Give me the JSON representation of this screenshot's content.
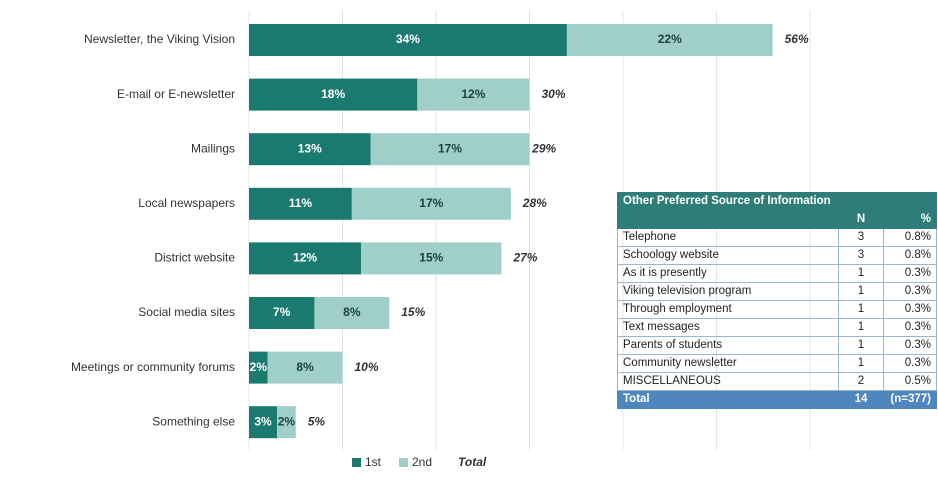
{
  "chart_data": {
    "type": "bar",
    "orientation": "horizontal",
    "stacked": true,
    "categories": [
      "Newsletter, the Viking Vision",
      "E-mail or E-newsletter",
      "Mailings",
      "Local newspapers",
      "District website",
      "Social media sites",
      "Meetings or community forums",
      "Something else"
    ],
    "series": [
      {
        "name": "1st",
        "color": "#1b7a70",
        "values": [
          34,
          18,
          13,
          11,
          12,
          7,
          2,
          3
        ],
        "value_labels": [
          "34%",
          "18%",
          "13%",
          "11%",
          "12%",
          "7%",
          "2%",
          "3%"
        ]
      },
      {
        "name": "2nd",
        "color": "#9fcfc8",
        "values": [
          22,
          12,
          17,
          17,
          15,
          8,
          8,
          2
        ],
        "value_labels": [
          "22%",
          "12%",
          "17%",
          "17%",
          "15%",
          "8%",
          "8%",
          "2%"
        ]
      }
    ],
    "totals": {
      "name": "Total",
      "values": [
        56,
        30,
        29,
        28,
        27,
        15,
        10,
        5
      ],
      "value_labels": [
        "56%",
        "30%",
        "29%",
        "28%",
        "27%",
        "15%",
        "10%",
        "5%"
      ]
    },
    "xlim": [
      0,
      60
    ],
    "xticks": [
      0,
      10,
      20,
      30,
      40,
      50,
      60
    ],
    "grid": true,
    "legend": "bottom"
  },
  "table": {
    "title": "Other Preferred Source of Information",
    "columns": [
      "N",
      "%"
    ],
    "rows": [
      [
        "Telephone",
        "3",
        "0.8%"
      ],
      [
        "Schoology website",
        "3",
        "0.8%"
      ],
      [
        "As it is presently",
        "1",
        "0.3%"
      ],
      [
        "Viking television program",
        "1",
        "0.3%"
      ],
      [
        "Through employment",
        "1",
        "0.3%"
      ],
      [
        "Text messages",
        "1",
        "0.3%"
      ],
      [
        "Parents of students",
        "1",
        "0.3%"
      ],
      [
        "Community newsletter",
        "1",
        "0.3%"
      ],
      [
        "MISCELLANEOUS",
        "2",
        "0.5%"
      ]
    ],
    "total": [
      "Total",
      "14",
      "(n=377)"
    ]
  }
}
